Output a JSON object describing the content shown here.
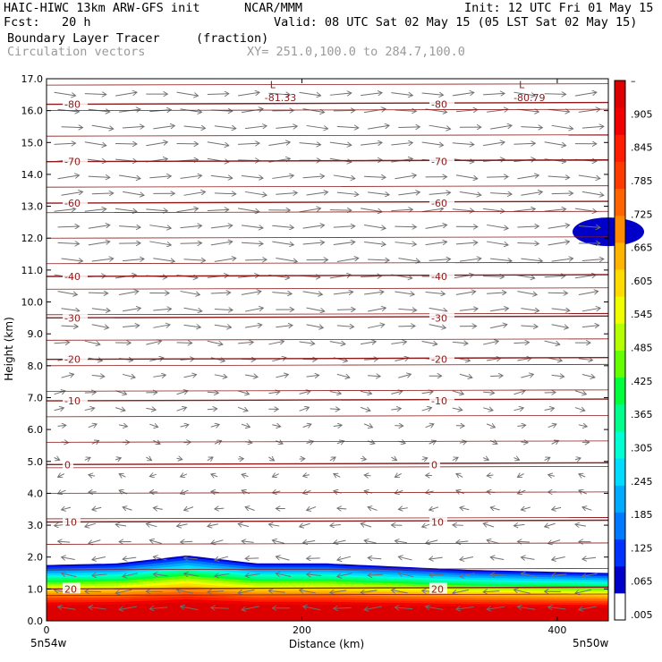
{
  "header": {
    "model": "HAIC-HIWC 13km ARW-GFS init",
    "org": "NCAR/MMM",
    "init": "Init: 12 UTC Fri 01 May 15",
    "fcst": "Fcst:   20 h",
    "valid": "Valid: 08 UTC Sat 02 May 15 (05 LST Sat 02 May 15)",
    "field": "Boundary Layer Tracer",
    "units": "(fraction)",
    "vectors": "Circulation vectors",
    "xy": "XY= 251.0,100.0 to 284.7,100.0"
  },
  "chart_data": {
    "type": "heatmap",
    "title": "Boundary Layer Tracer",
    "xlabel": "Distance (km)",
    "ylabel": "Height (km)",
    "xlim": [
      0,
      440
    ],
    "ylim": [
      0,
      17
    ],
    "x_ticks": [
      "0",
      "200",
      "400"
    ],
    "x_endpoints": [
      "5n54w",
      "5n50w"
    ],
    "y_ticks": [
      "0.0",
      "1.0",
      "2.0",
      "3.0",
      "4.0",
      "5.0",
      "6.0",
      "7.0",
      "8.0",
      "9.0",
      "10.0",
      "11.0",
      "12.0",
      "13.0",
      "14.0",
      "15.0",
      "16.0",
      "17.0"
    ],
    "colorbar": {
      "labels": [
        ".005",
        ".065",
        ".125",
        ".185",
        ".245",
        ".305",
        ".365",
        ".425",
        ".485",
        ".545",
        ".605",
        ".665",
        ".725",
        ".785",
        ".845",
        ".905",
        "–"
      ],
      "colors": [
        "#ffffff",
        "#0000c8",
        "#0032ff",
        "#0078ff",
        "#00aaff",
        "#00dcff",
        "#00ffd2",
        "#00ff8c",
        "#00ff3c",
        "#64ff00",
        "#b4ff00",
        "#f0ff00",
        "#ffdc00",
        "#ffb400",
        "#ff8c00",
        "#ff6400",
        "#ff3c00",
        "#ff1e00",
        "#f00000",
        "#dc0000"
      ]
    },
    "temperature_contours": [
      {
        "label": "20",
        "height": 1.0
      },
      {
        "label": "10",
        "height": 3.1
      },
      {
        "label": "0",
        "height": 4.9
      },
      {
        "label": "-10",
        "height": 6.9
      },
      {
        "label": "-20",
        "height": 8.2
      },
      {
        "label": "-30",
        "height": 9.5
      },
      {
        "label": "-40",
        "height": 10.8
      },
      {
        "label": "-60",
        "height": 13.1
      },
      {
        "label": "-70",
        "height": 14.4
      },
      {
        "label": "-80",
        "height": 16.2
      }
    ],
    "minima": [
      {
        "marker": "L",
        "value": "-81.33",
        "x": 175
      },
      {
        "marker": "L",
        "value": "-80.79",
        "x": 370
      }
    ],
    "tracer_top_km": [
      1.75,
      1.8,
      2.05,
      1.8,
      1.8,
      1.7,
      1.6,
      1.55,
      1.5
    ]
  }
}
